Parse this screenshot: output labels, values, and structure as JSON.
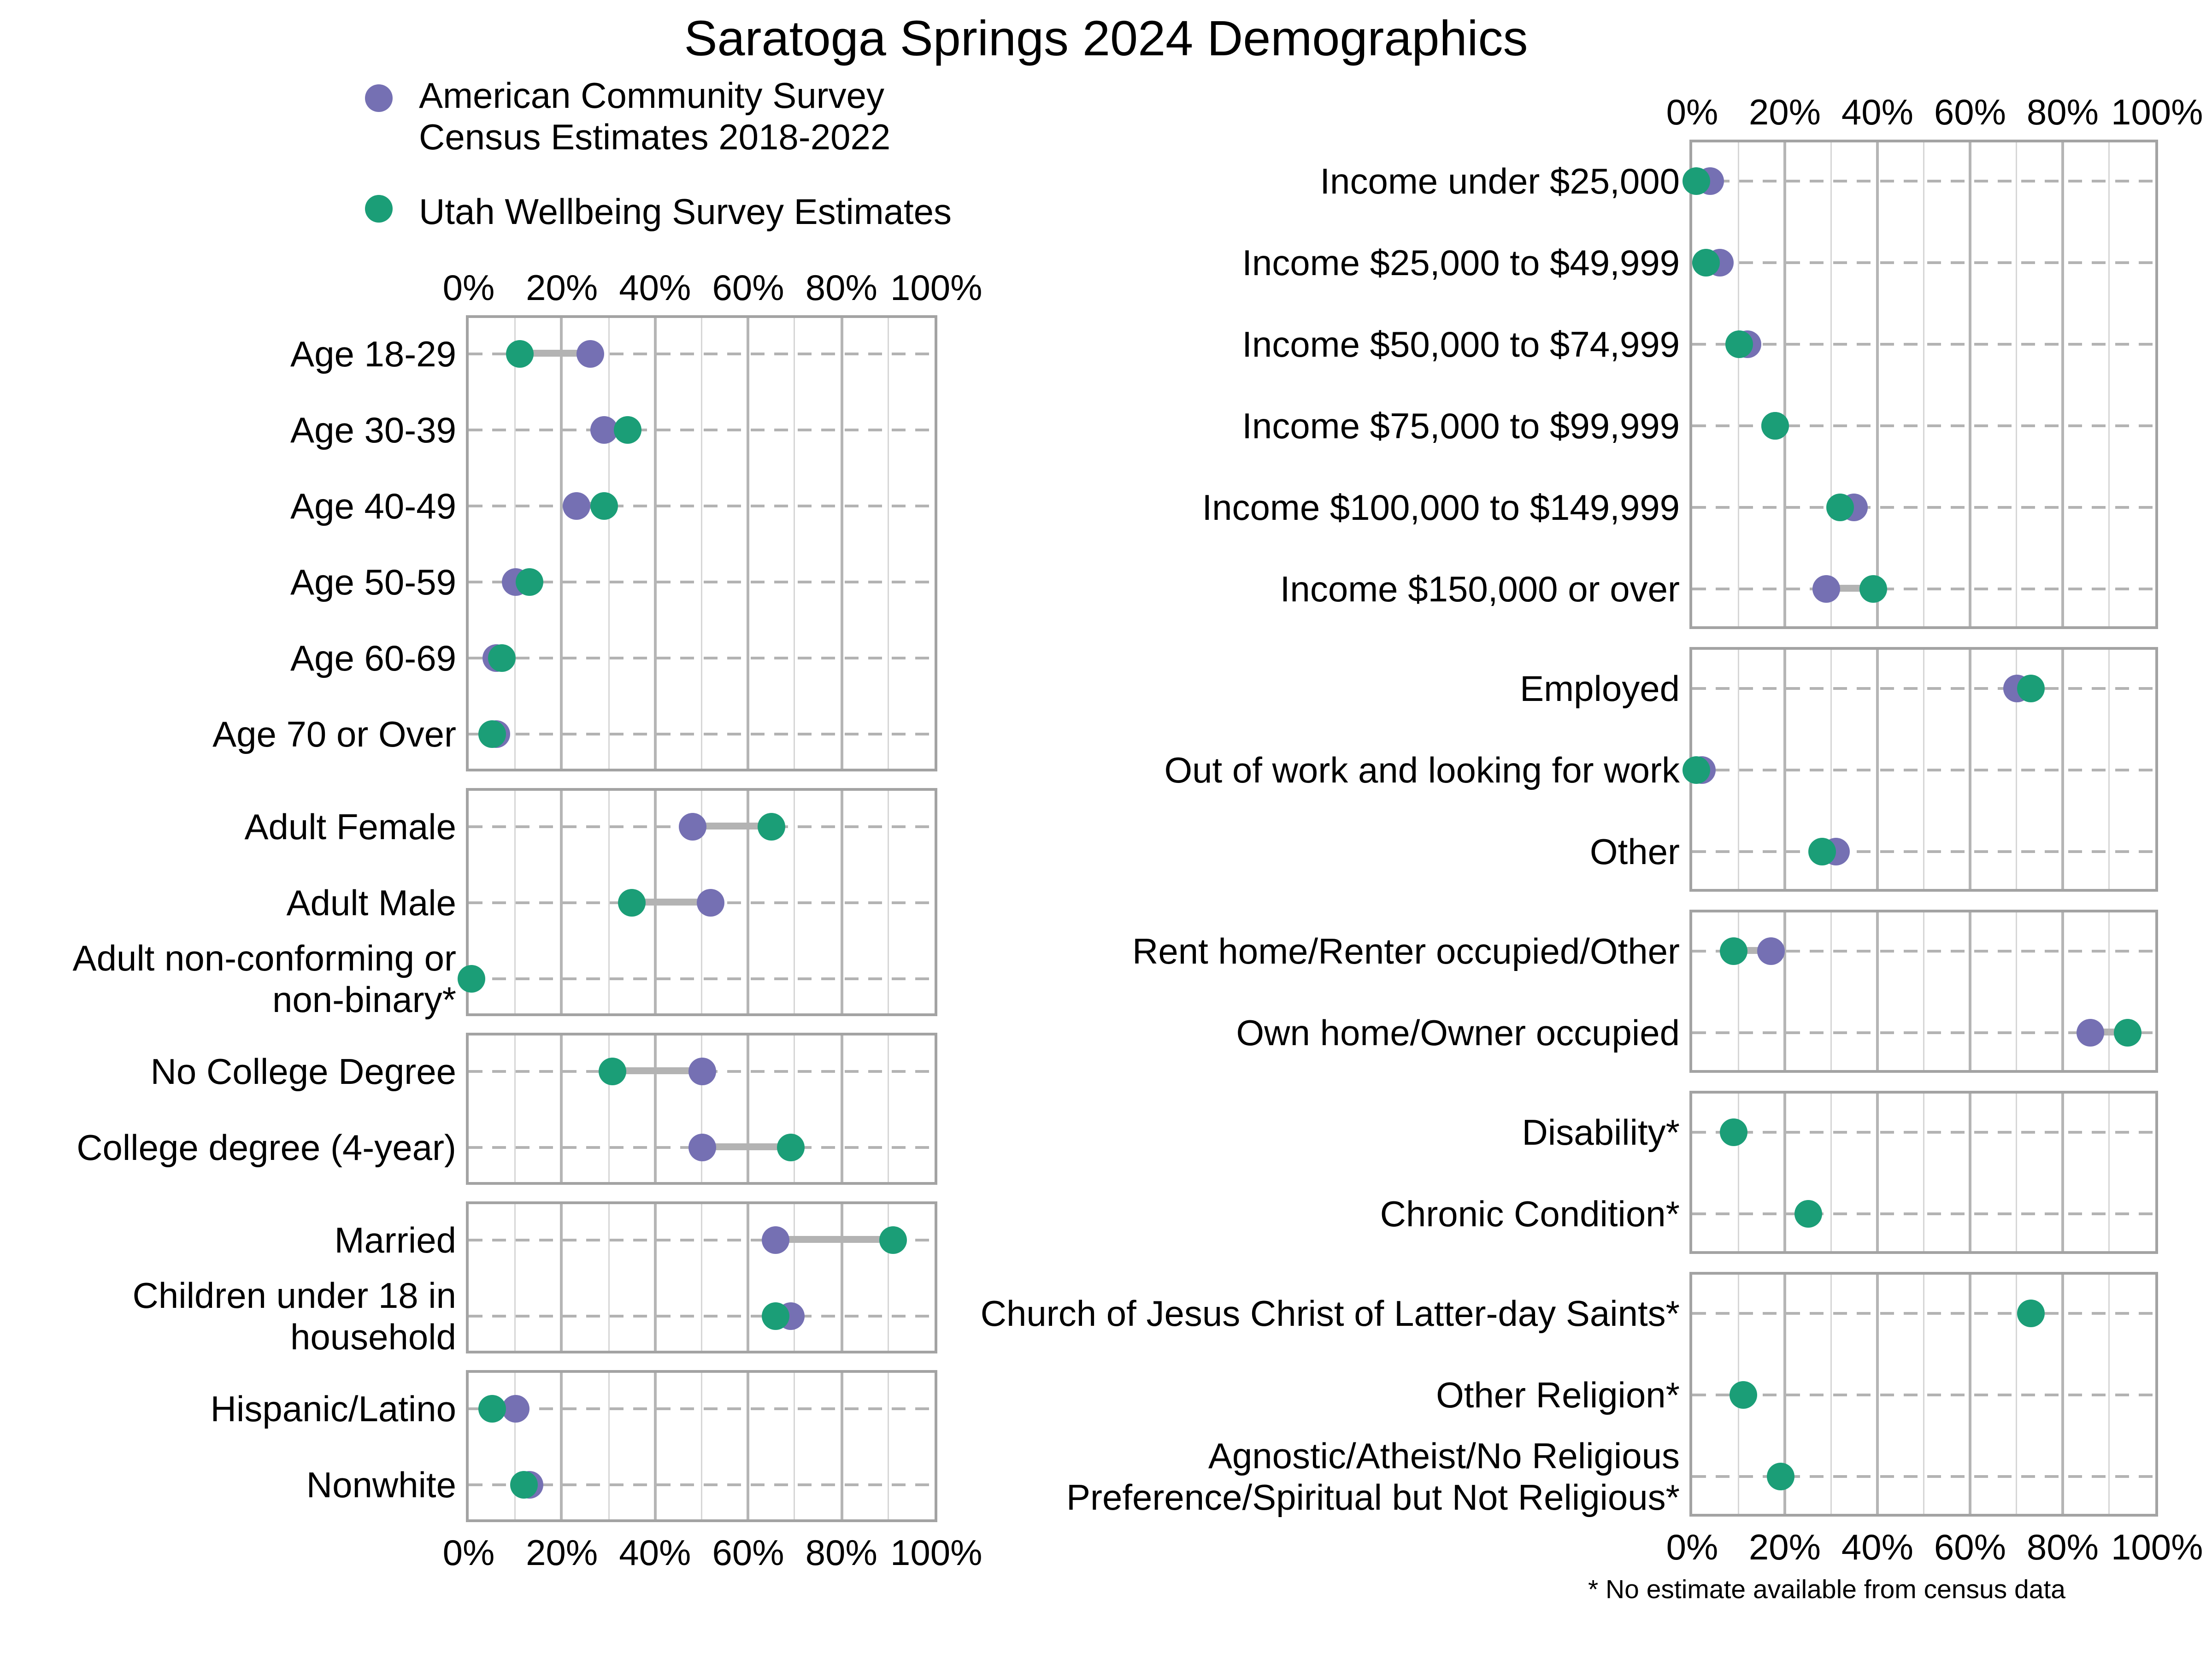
{
  "title": "Saratoga Springs 2024 Demographics",
  "legend": {
    "entries": [
      {
        "label_lines": [
          "American Community Survey",
          "Census Estimates 2018-2022"
        ],
        "color": "#7570B3"
      },
      {
        "label_lines": [
          "Utah Wellbeing Survey Estimates"
        ],
        "color": "#1B9E77"
      }
    ]
  },
  "footnote": "* No estimate available from census data",
  "colors": {
    "acs": "#7570B3",
    "uws": "#1B9E77",
    "connector": "#b3b3b3",
    "panel_border": "#a3a3a3",
    "grid_major": "#b5b5b5",
    "grid_minor": "#d6d6d6",
    "row_dash": "#b3b3b3"
  },
  "chart_data": [
    {
      "type": "dumbbell",
      "position": "left",
      "x_axis": {
        "ticks": [
          "0%",
          "20%",
          "40%",
          "60%",
          "80%",
          "100%"
        ],
        "range": [
          0,
          100
        ],
        "gridlines_every": 10,
        "tick_labels_top": true,
        "tick_labels_bottom": true
      },
      "series": [
        {
          "name": "American Community Survey Census Estimates 2018-2022",
          "key": "acs",
          "color": "#7570B3"
        },
        {
          "name": "Utah Wellbeing Survey Estimates",
          "key": "uws",
          "color": "#1B9E77"
        }
      ],
      "unit": "percent",
      "panels": [
        {
          "name": "age",
          "rows": [
            {
              "label": "Age 18-29",
              "acs": 26,
              "uws": 11
            },
            {
              "label": "Age 30-39",
              "acs": 29,
              "uws": 34
            },
            {
              "label": "Age 40-49",
              "acs": 23,
              "uws": 29
            },
            {
              "label": "Age 50-59",
              "acs": 10,
              "uws": 13
            },
            {
              "label": "Age 60-69",
              "acs": 6,
              "uws": 7
            },
            {
              "label": "Age 70 or Over",
              "acs": 6,
              "uws": 5
            }
          ]
        },
        {
          "name": "gender",
          "rows": [
            {
              "label": "Adult Female",
              "acs": 48,
              "uws": 65
            },
            {
              "label": "Adult Male",
              "acs": 52,
              "uws": 35
            },
            {
              "label": "Adult non-conforming or non-binary*",
              "acs": null,
              "uws": 0.5
            }
          ]
        },
        {
          "name": "education",
          "rows": [
            {
              "label": "No College Degree",
              "acs": 50,
              "uws": 31
            },
            {
              "label": "College degree (4-year)",
              "acs": 50,
              "uws": 69
            }
          ]
        },
        {
          "name": "family",
          "rows": [
            {
              "label": "Married",
              "acs": 66,
              "uws": 91
            },
            {
              "label": "Children under 18 in household",
              "acs": 69,
              "uws": 66
            }
          ]
        },
        {
          "name": "race",
          "rows": [
            {
              "label": "Hispanic/Latino",
              "acs": 10,
              "uws": 5
            },
            {
              "label": "Nonwhite",
              "acs": 13,
              "uws": 12
            }
          ]
        }
      ]
    },
    {
      "type": "dumbbell",
      "position": "right",
      "x_axis": {
        "ticks": [
          "0%",
          "20%",
          "40%",
          "60%",
          "80%",
          "100%"
        ],
        "range": [
          0,
          100
        ],
        "gridlines_every": 10,
        "tick_labels_top": true,
        "tick_labels_bottom": true
      },
      "series": [
        {
          "name": "American Community Survey Census Estimates 2018-2022",
          "key": "acs",
          "color": "#7570B3"
        },
        {
          "name": "Utah Wellbeing Survey Estimates",
          "key": "uws",
          "color": "#1B9E77"
        }
      ],
      "unit": "percent",
      "panels": [
        {
          "name": "income",
          "rows": [
            {
              "label": "Income under $25,000",
              "acs": 4,
              "uws": 1
            },
            {
              "label": "Income $25,000 to $49,999",
              "acs": 6,
              "uws": 3
            },
            {
              "label": "Income $50,000 to $74,999",
              "acs": 12,
              "uws": 10
            },
            {
              "label": "Income $75,000 to $99,999",
              "acs": 18,
              "uws": 18
            },
            {
              "label": "Income $100,000 to $149,999",
              "acs": 35,
              "uws": 32
            },
            {
              "label": "Income $150,000 or over",
              "acs": 29,
              "uws": 39
            }
          ]
        },
        {
          "name": "employment",
          "rows": [
            {
              "label": "Employed",
              "acs": 70,
              "uws": 73
            },
            {
              "label": "Out of work and looking for work",
              "acs": 2,
              "uws": 1
            },
            {
              "label": "Other",
              "acs": 31,
              "uws": 28
            }
          ]
        },
        {
          "name": "housing",
          "rows": [
            {
              "label": "Rent home/Renter occupied/Other",
              "acs": 17,
              "uws": 9
            },
            {
              "label": "Own home/Owner occupied",
              "acs": 86,
              "uws": 94
            }
          ]
        },
        {
          "name": "health",
          "rows": [
            {
              "label": "Disability*",
              "acs": null,
              "uws": 9
            },
            {
              "label": "Chronic Condition*",
              "acs": null,
              "uws": 25
            }
          ]
        },
        {
          "name": "religion",
          "rows": [
            {
              "label": "Church of Jesus Christ of Latter-day Saints*",
              "acs": null,
              "uws": 73
            },
            {
              "label": "Other Religion*",
              "acs": null,
              "uws": 11
            },
            {
              "label": "Agnostic/Atheist/No Religious Preference/Spiritual but Not Religious*",
              "acs": null,
              "uws": 19
            }
          ]
        }
      ]
    }
  ]
}
